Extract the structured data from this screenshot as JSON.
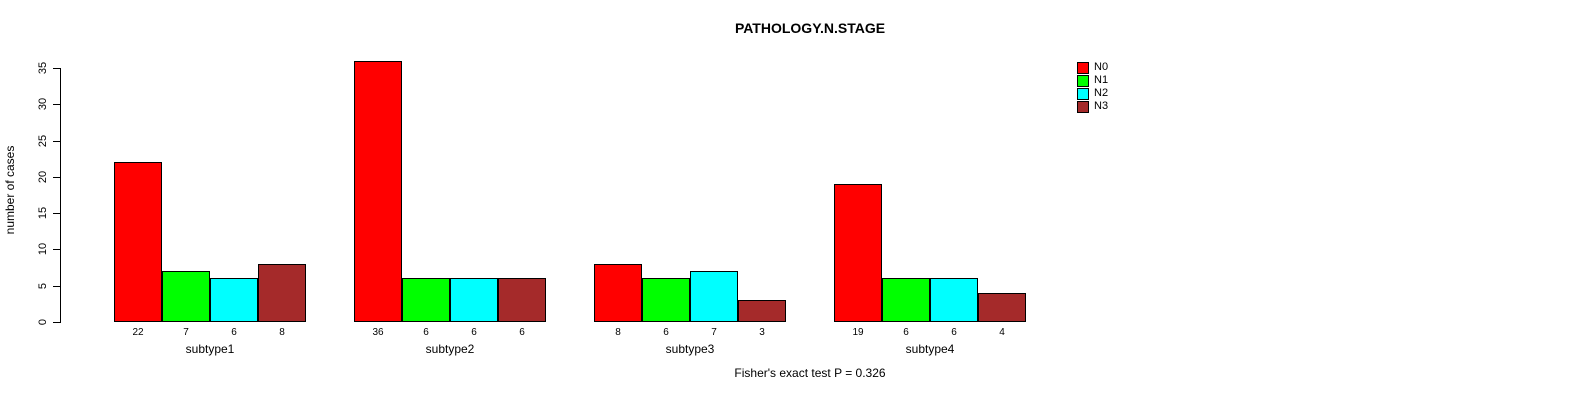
{
  "title": "PATHOLOGY.N.STAGE",
  "ylabel": "number of cases",
  "footer": "Fisher's exact test P = 0.326",
  "legend": [
    {
      "label": "N0",
      "color": "#FF0000"
    },
    {
      "label": "N1",
      "color": "#00FF00"
    },
    {
      "label": "N2",
      "color": "#00FFFF"
    },
    {
      "label": "N3",
      "color": "#A52A2A"
    }
  ],
  "chart_data": {
    "type": "bar",
    "title": "PATHOLOGY.N.STAGE",
    "xlabel": "",
    "ylabel": "number of cases",
    "categories": [
      "subtype1",
      "subtype2",
      "subtype3",
      "subtype4"
    ],
    "series": [
      {
        "name": "N0",
        "color": "#FF0000",
        "values": [
          22,
          36,
          8,
          19
        ]
      },
      {
        "name": "N1",
        "color": "#00FF00",
        "values": [
          7,
          6,
          6,
          6
        ]
      },
      {
        "name": "N2",
        "color": "#00FFFF",
        "values": [
          6,
          6,
          7,
          6
        ]
      },
      {
        "name": "N3",
        "color": "#A52A2A",
        "values": [
          8,
          6,
          3,
          4
        ]
      }
    ],
    "bar_value_labels": {
      "subtype1": [
        22,
        7,
        6,
        8
      ],
      "subtype2": [
        36,
        6,
        6,
        6
      ],
      "subtype3": [
        8,
        6,
        7,
        3
      ],
      "subtype4": [
        19,
        6,
        6,
        4
      ]
    },
    "yticks": [
      0,
      5,
      10,
      15,
      20,
      25,
      30,
      35
    ],
    "ylim": [
      0,
      35
    ],
    "grid": false,
    "legend_position": "top-right-inside",
    "annotation": "Fisher's exact test P = 0.326"
  }
}
